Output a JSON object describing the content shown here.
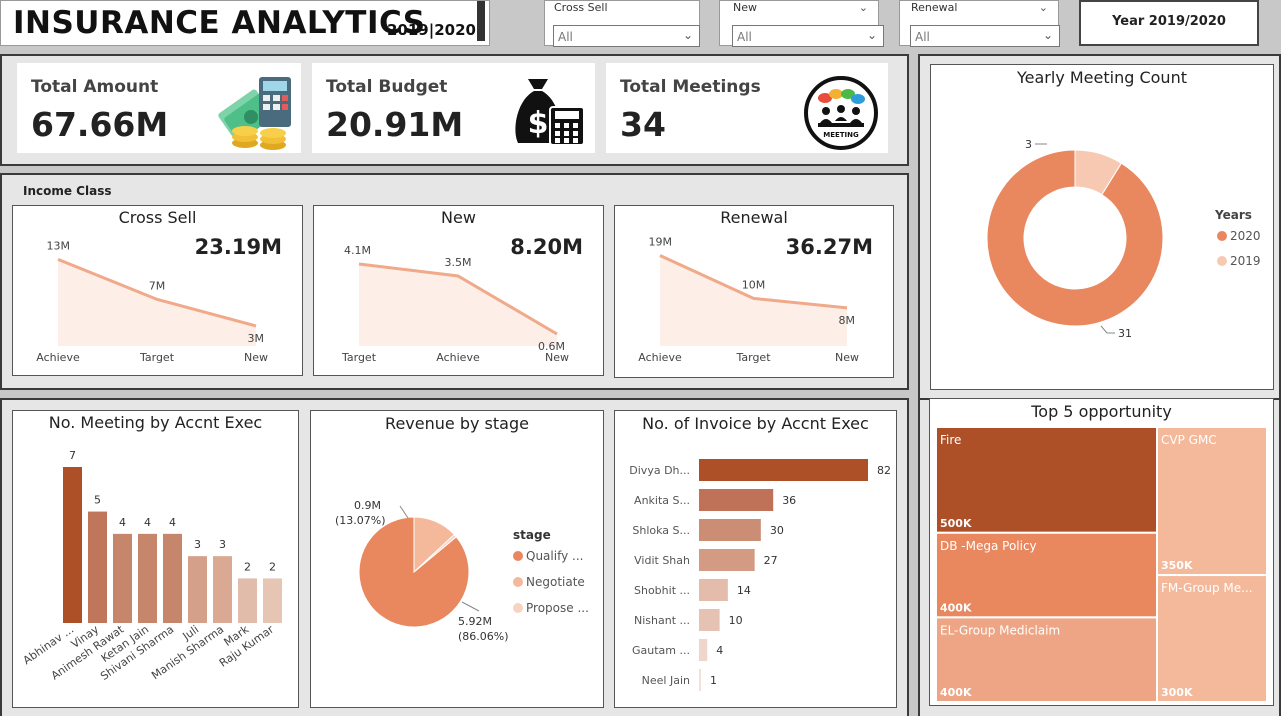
{
  "header": {
    "title": "INSURANCE ANALYTICS",
    "year_range": "2019|2020"
  },
  "slicers": [
    {
      "label": "Cross Sell",
      "value": "All"
    },
    {
      "label": "New",
      "value": "All"
    },
    {
      "label": "Renewal",
      "value": "All"
    }
  ],
  "year_button": {
    "label": "Year 2019/2020"
  },
  "kpis": [
    {
      "label": "Total Amount",
      "value": "67.66M",
      "icon": "money-calculator-icon"
    },
    {
      "label": "Total Budget",
      "value": "20.91M",
      "icon": "money-bag-calculator-icon"
    },
    {
      "label": "Total Meetings",
      "value": "34",
      "icon": "meeting-icon",
      "icon_text": "MEETING"
    }
  ],
  "income_class": {
    "label": "Income Class"
  },
  "colors": {
    "dark": "#ad4f27",
    "mid": "#c0765a",
    "accent": "#e9875f",
    "light": "#f4b99b",
    "pale": "#f7c9b2",
    "line": "#f0a989",
    "area": "#fdeee8"
  },
  "chart_data": [
    {
      "id": "cross-sell",
      "type": "area",
      "title": "Cross Sell",
      "total": "23.19M",
      "categories": [
        "Achieve",
        "Target",
        "New"
      ],
      "values": [
        13,
        7,
        3
      ],
      "labels": [
        "13M",
        "7M",
        "3M"
      ],
      "ylim": [
        0,
        15
      ]
    },
    {
      "id": "new",
      "type": "area",
      "title": "New",
      "total": "8.20M",
      "categories": [
        "Target",
        "Achieve",
        "New"
      ],
      "values": [
        4.1,
        3.5,
        0.6
      ],
      "labels": [
        "4.1M",
        "3.5M",
        "0.6M"
      ],
      "ylim": [
        0,
        5
      ]
    },
    {
      "id": "renewal",
      "type": "area",
      "title": "Renewal",
      "total": "36.27M",
      "categories": [
        "Achieve",
        "Target",
        "New"
      ],
      "values": [
        19,
        10,
        8
      ],
      "labels": [
        "19M",
        "10M",
        "8M"
      ],
      "ylim": [
        0,
        21
      ]
    },
    {
      "id": "yearly-meeting",
      "type": "pie",
      "title": "Yearly Meeting Count",
      "legend_title": "Years",
      "series": [
        {
          "name": "2020",
          "value": 31,
          "label": "31"
        },
        {
          "name": "2019",
          "value": 3,
          "label": "3"
        }
      ]
    },
    {
      "id": "meeting-by-exec",
      "type": "bar",
      "title": "No. Meeting by Accnt Exec",
      "categories": [
        "Abhinav ...",
        "Vinay",
        "Animesh Rawat",
        "Ketan Jain",
        "Shivani Sharma",
        "Juli",
        "Manish Sharma",
        "Mark",
        "Raju Kumar"
      ],
      "values": [
        7,
        5,
        4,
        4,
        4,
        3,
        3,
        2,
        2
      ],
      "ylim": [
        0,
        7
      ]
    },
    {
      "id": "revenue-by-stage",
      "type": "pie",
      "title": "Revenue by stage",
      "legend_title": "stage",
      "series": [
        {
          "name": "Qualify ...",
          "value": 5.92,
          "label": "5.92M",
          "pct": "(86.06%)"
        },
        {
          "name": "Negotiate",
          "value": 0.9,
          "label": "0.9M",
          "pct": "(13.07%)"
        },
        {
          "name": "Propose ...",
          "value": 0.06,
          "label": "",
          "pct": ""
        }
      ]
    },
    {
      "id": "invoice-by-exec",
      "type": "bar",
      "title": "No. of Invoice by Accnt Exec",
      "categories": [
        "Divya Dh...",
        "Ankita S...",
        "Shloka S...",
        "Vidit Shah",
        "Shobhit ...",
        "Nishant ...",
        "Gautam ...",
        "Neel Jain"
      ],
      "values": [
        82,
        36,
        30,
        27,
        14,
        10,
        4,
        1
      ],
      "xlim": [
        0,
        82
      ]
    },
    {
      "id": "top-opportunity",
      "type": "treemap",
      "title": "Top 5 opportunity",
      "series": [
        {
          "name": "Fire",
          "value": 500,
          "label": "500K"
        },
        {
          "name": "DB -Mega Policy",
          "value": 400,
          "label": "400K"
        },
        {
          "name": "EL-Group Mediclaim",
          "value": 400,
          "label": "400K"
        },
        {
          "name": "CVP GMC",
          "value": 350,
          "label": "350K"
        },
        {
          "name": "FM-Group Me...",
          "value": 300,
          "label": "300K"
        }
      ]
    }
  ]
}
